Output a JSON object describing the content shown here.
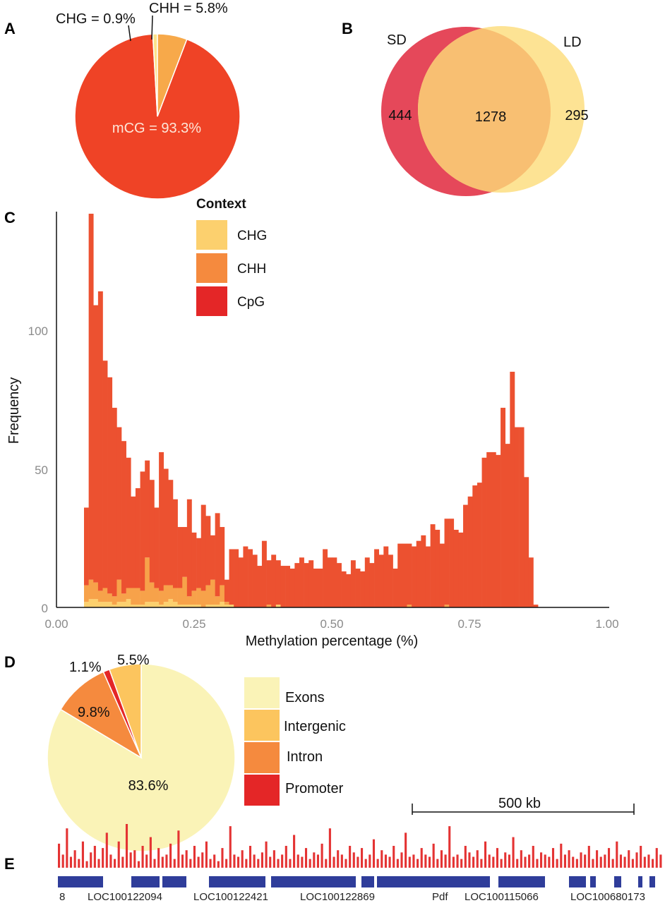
{
  "panels": {
    "a": "A",
    "b": "B",
    "c": "C",
    "d": "D",
    "e": "E"
  },
  "colors": {
    "cpg": "#ec5130",
    "chh": "#f7a24a",
    "chg": "#fcd06e",
    "exons": "#faf3b7",
    "intergenic": "#fcc55e",
    "intron": "#f58a3e",
    "promoter": "#e42627",
    "sd": "#e5485a",
    "ld": "#fde394",
    "overlap": "#f8bf72",
    "track": "#e43333",
    "genes": "#2f3d9a"
  },
  "chart_data": [
    {
      "type": "pie",
      "panel": "A",
      "slices": [
        {
          "label": "mCG = 93.3%",
          "value": 93.3,
          "color": "#ef4326"
        },
        {
          "label": "CHG = 0.9%",
          "value": 0.9,
          "color": "#fce28a"
        },
        {
          "label": "CHH = 5.8%",
          "value": 5.8,
          "color": "#f7a94a"
        }
      ]
    },
    {
      "type": "venn",
      "panel": "B",
      "sets": [
        "SD",
        "LD"
      ],
      "counts": {
        "sd_only": 444,
        "both": 1278,
        "ld_only": 295
      }
    },
    {
      "type": "bar",
      "panel": "C",
      "xlabel": "Methylation percentage (%)",
      "ylabel": "Frequency",
      "xlim": [
        0,
        1
      ],
      "ylim": [
        0,
        142
      ],
      "xticks": [
        "0.00",
        "0.25",
        "0.50",
        "0.75",
        "1.00"
      ],
      "yticks": [
        "0",
        "50",
        "100"
      ],
      "legend_title": "Context",
      "legend_position": "top",
      "stacked": true,
      "bin_start": 0.05,
      "bin_width": 0.0085,
      "series": [
        {
          "name": "CHG",
          "values": [
            2,
            3,
            3,
            2,
            2,
            2,
            1,
            2,
            2,
            3,
            1,
            1,
            1,
            2,
            2,
            2,
            1,
            2,
            3,
            2,
            1,
            1,
            1,
            1,
            1,
            0,
            1,
            1,
            1,
            2,
            1,
            1,
            0,
            0,
            0,
            0,
            0,
            0,
            0,
            0,
            0,
            1,
            0,
            0,
            0,
            0,
            0,
            0,
            0,
            0,
            0,
            0,
            0,
            0,
            0,
            0,
            0,
            0,
            0,
            0,
            0,
            0,
            0,
            0,
            0,
            0,
            0,
            0,
            0,
            0,
            0,
            0,
            0,
            0,
            0,
            0,
            0,
            0,
            0,
            0,
            0,
            0,
            0,
            0,
            0,
            0,
            0,
            0,
            0,
            0,
            0,
            0,
            0,
            0,
            0
          ]
        },
        {
          "name": "CHH",
          "values": [
            6,
            7,
            6,
            4,
            5,
            3,
            3,
            8,
            3,
            4,
            6,
            6,
            5,
            16,
            7,
            5,
            5,
            6,
            5,
            5,
            6,
            10,
            3,
            5,
            6,
            6,
            7,
            9,
            3,
            6,
            1,
            0,
            0,
            0,
            0,
            0,
            0,
            0,
            0,
            1,
            0,
            0,
            0,
            0,
            0,
            0,
            0,
            0,
            0,
            0,
            0,
            0,
            0,
            0,
            0,
            0,
            0,
            0,
            0,
            0,
            0,
            0,
            0,
            0,
            0,
            0,
            0,
            0,
            0,
            1,
            0,
            0,
            0,
            0,
            0,
            0,
            0,
            1,
            0,
            0,
            0,
            0,
            0,
            0,
            0,
            0,
            0,
            0,
            0,
            0,
            0,
            0,
            0,
            0,
            0
          ]
        },
        {
          "name": "CpG",
          "values": [
            28,
            132,
            100,
            108,
            82,
            78,
            68,
            55,
            55,
            47,
            33,
            36,
            43,
            35,
            37,
            29,
            50,
            42,
            38,
            32,
            22,
            18,
            35,
            21,
            18,
            31,
            25,
            16,
            30,
            21,
            8,
            20,
            21,
            18,
            22,
            21,
            19,
            15,
            24,
            16,
            19,
            16,
            15,
            15,
            14,
            16,
            18,
            16,
            17,
            14,
            14,
            21,
            18,
            18,
            16,
            13,
            12,
            17,
            14,
            13,
            18,
            16,
            21,
            19,
            22,
            19,
            14,
            23,
            23,
            22,
            22,
            24,
            26,
            22,
            30,
            28,
            23,
            31,
            32,
            28,
            27,
            37,
            40,
            44,
            45,
            54,
            56,
            56,
            55,
            72,
            59,
            85,
            65,
            65,
            47,
            18,
            1
          ]
        }
      ]
    },
    {
      "type": "pie",
      "panel": "D",
      "slices": [
        {
          "name": "Exons",
          "label": "83.6%",
          "value": 83.6
        },
        {
          "name": "Intergenic",
          "label": "5.5%",
          "value": 5.5
        },
        {
          "name": "Intron",
          "label": "9.8%",
          "value": 9.8
        },
        {
          "name": "Promoter",
          "label": "1.1%",
          "value": 1.1
        }
      ],
      "legend": [
        "Exons",
        "Intergenic",
        "Intron",
        "Promoter"
      ]
    },
    {
      "type": "bar",
      "panel": "E",
      "scale_label": "500 kb",
      "genes": [
        "8",
        "LOC100122094",
        "LOC100122421",
        "LOC100122869",
        "Pdf",
        "LOC100115066",
        "LOC100680173"
      ],
      "track_values": [
        0.55,
        0.3,
        0.9,
        0.25,
        0.4,
        0.2,
        0.6,
        0.15,
        0.35,
        0.5,
        0.2,
        0.45,
        0.8,
        0.3,
        0.2,
        0.6,
        0.25,
        1.0,
        0.35,
        0.4,
        0.15,
        0.5,
        0.3,
        0.7,
        0.2,
        0.45,
        0.25,
        0.3,
        0.55,
        0.2,
        0.85,
        0.3,
        0.4,
        0.2,
        0.5,
        0.25,
        0.35,
        0.6,
        0.2,
        0.3,
        0.15,
        0.45,
        0.2,
        0.95,
        0.3,
        0.25,
        0.4,
        0.2,
        0.5,
        0.3,
        0.2,
        0.35,
        0.6,
        0.25,
        0.4,
        0.2,
        0.3,
        0.5,
        0.2,
        0.75,
        0.3,
        0.25,
        0.45,
        0.2,
        0.35,
        0.3,
        0.55,
        0.2,
        0.9,
        0.25,
        0.4,
        0.3,
        0.2,
        0.5,
        0.35,
        0.25,
        0.45,
        0.2,
        0.3,
        0.65,
        0.2,
        0.4,
        0.3,
        0.25,
        0.5,
        0.2,
        0.35,
        0.8,
        0.25,
        0.3,
        0.2,
        0.45,
        0.3,
        0.25,
        0.55,
        0.2,
        0.4,
        0.3,
        0.95,
        0.25,
        0.3,
        0.2,
        0.5,
        0.35,
        0.25,
        0.4,
        0.2,
        0.6,
        0.3,
        0.25,
        0.45,
        0.2,
        0.35,
        0.3,
        0.7,
        0.2,
        0.4,
        0.25,
        0.3,
        0.5,
        0.2,
        0.35,
        0.3,
        0.25,
        0.45,
        0.2,
        0.55,
        0.3,
        0.4,
        0.25,
        0.2,
        0.35,
        0.3,
        0.5,
        0.2,
        0.4,
        0.25,
        0.3,
        0.45,
        0.2,
        0.6,
        0.3,
        0.25,
        0.4,
        0.2,
        0.35,
        0.5,
        0.25,
        0.3,
        0.2,
        0.45,
        0.3
      ]
    }
  ]
}
